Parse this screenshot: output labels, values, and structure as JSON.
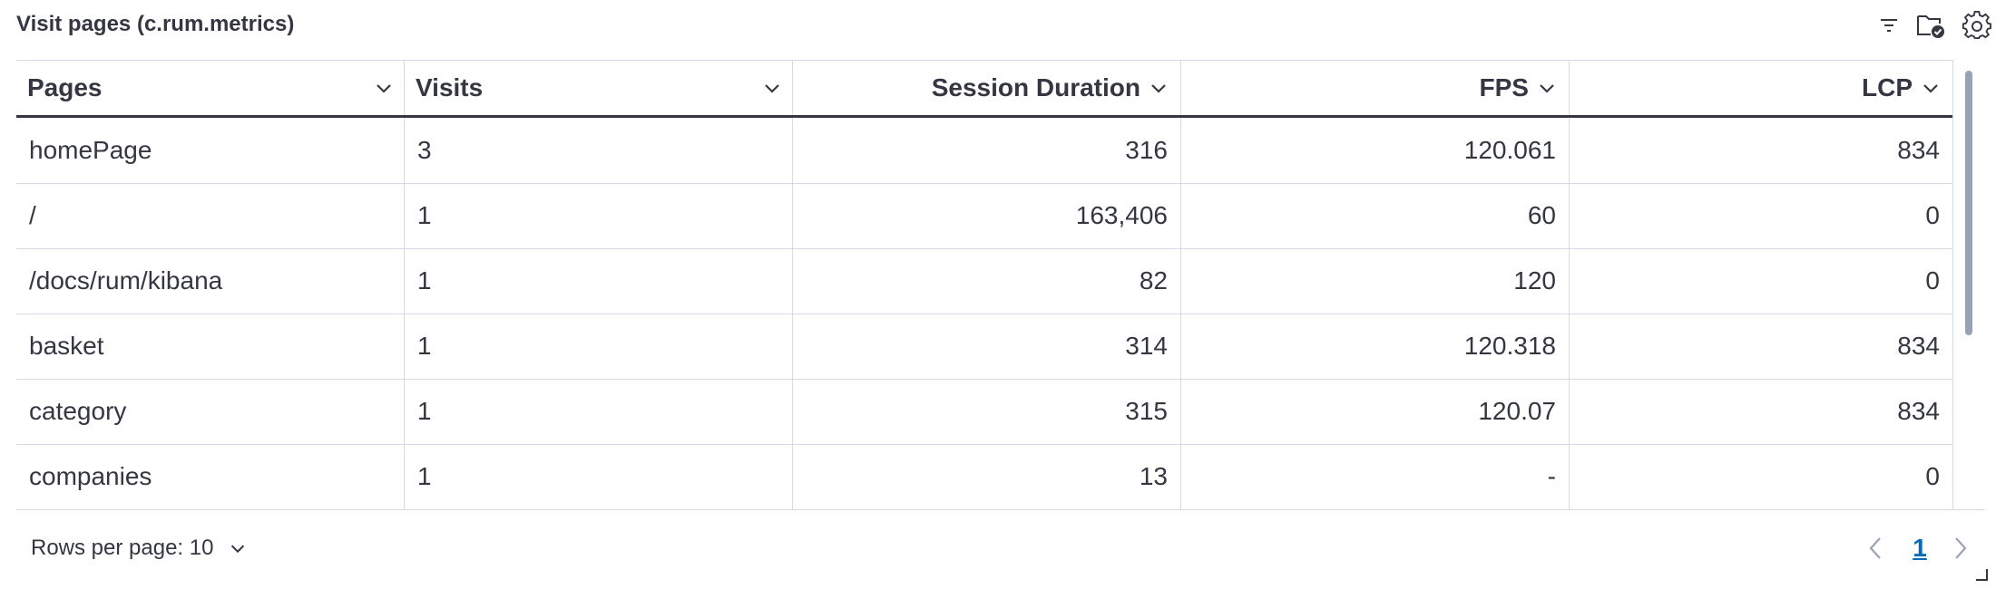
{
  "panel": {
    "title": "Visit pages (c.rum.metrics)",
    "icons": [
      "filter-icon",
      "folder-check-icon",
      "gear-icon"
    ]
  },
  "table": {
    "columns": [
      {
        "key": "pages",
        "label": "Pages",
        "align": "left"
      },
      {
        "key": "visits",
        "label": "Visits",
        "align": "left"
      },
      {
        "key": "session_duration",
        "label": "Session Duration",
        "align": "right"
      },
      {
        "key": "fps",
        "label": "FPS",
        "align": "right"
      },
      {
        "key": "lcp",
        "label": "LCP",
        "align": "right"
      }
    ],
    "rows": [
      {
        "pages": "homePage",
        "visits": "3",
        "session_duration": "316",
        "fps": "120.061",
        "lcp": "834"
      },
      {
        "pages": "/",
        "visits": "1",
        "session_duration": "163,406",
        "fps": "60",
        "lcp": "0"
      },
      {
        "pages": "/docs/rum/kibana",
        "visits": "1",
        "session_duration": "82",
        "fps": "120",
        "lcp": "0"
      },
      {
        "pages": "basket",
        "visits": "1",
        "session_duration": "314",
        "fps": "120.318",
        "lcp": "834"
      },
      {
        "pages": "category",
        "visits": "1",
        "session_duration": "315",
        "fps": "120.07",
        "lcp": "834"
      },
      {
        "pages": "companies",
        "visits": "1",
        "session_duration": "13",
        "fps": "-",
        "lcp": "0"
      }
    ]
  },
  "footer": {
    "rows_per_page_label": "Rows per page: 10",
    "current_page": "1"
  },
  "colors": {
    "text": "#343741",
    "border": "#d3dae6",
    "link": "#006bb8",
    "icon": "#343741",
    "muted_icon": "#98a2b3"
  }
}
